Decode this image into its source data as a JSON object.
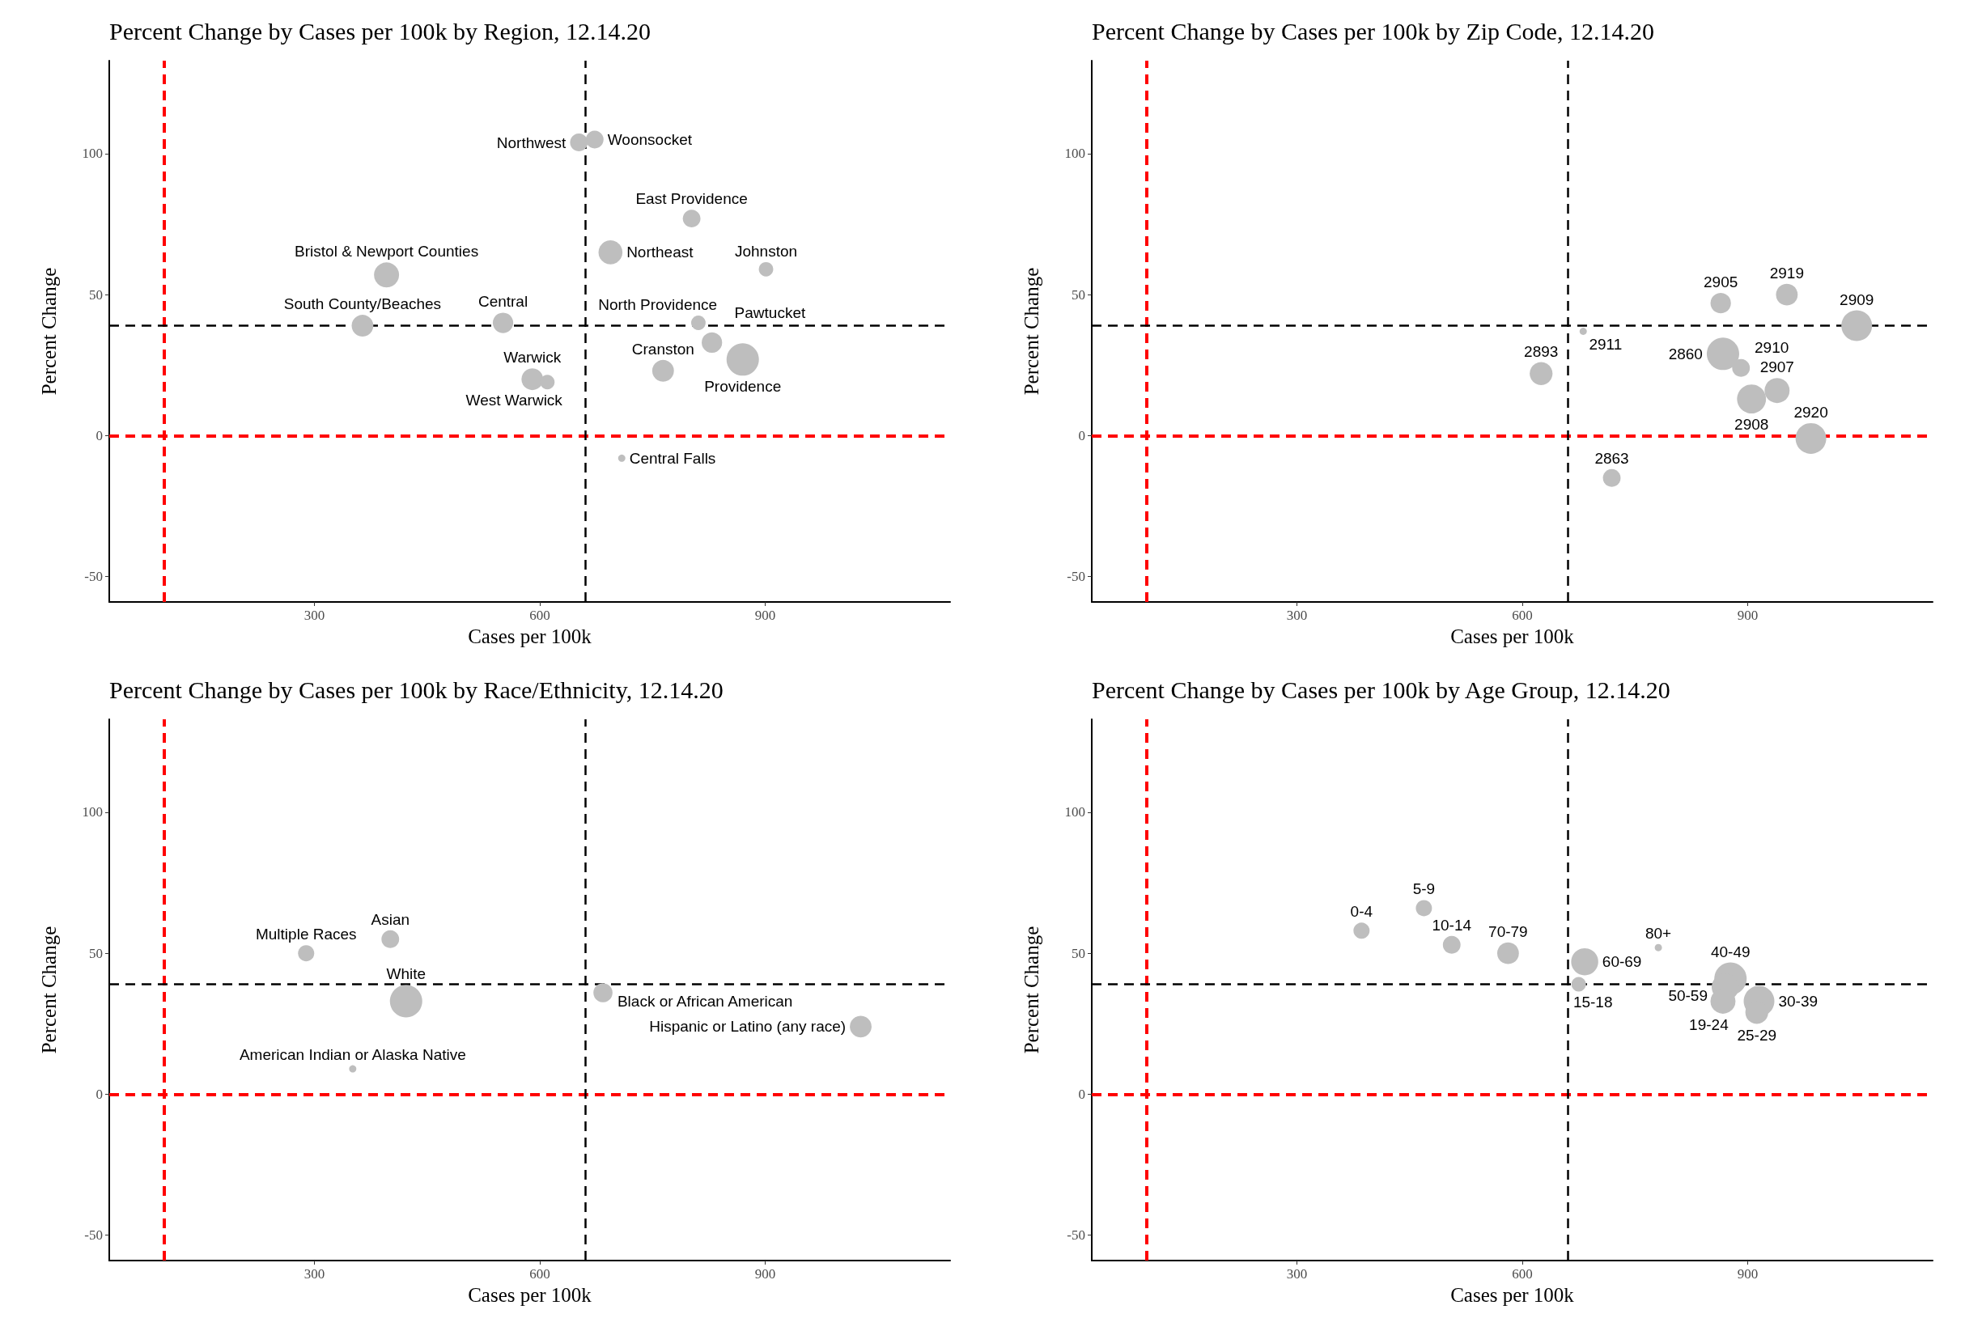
{
  "chart_data": [
    {
      "type": "bubble",
      "title": "Percent Change by Cases per 100k by Region, 12.14.20",
      "xlabel": "Cases per 100k",
      "ylabel": "Percent Change",
      "xlim": [
        27,
        1146
      ],
      "ylim": [
        -59,
        133
      ],
      "xticks": [
        300,
        600,
        900
      ],
      "yticks": [
        -50,
        0,
        50,
        100
      ],
      "grid": false,
      "ref_lines": [
        {
          "axis": "x",
          "value": 100,
          "color": "#ff0000",
          "line_style": "dashed"
        },
        {
          "axis": "y",
          "value": 0,
          "color": "#ff0000",
          "line_style": "dashed"
        },
        {
          "axis": "x",
          "value": 661,
          "color": "#000000",
          "line_style": "dashed"
        },
        {
          "axis": "y",
          "value": 39,
          "color": "#000000",
          "line_style": "dashed"
        }
      ],
      "series": [
        {
          "name": "Woonsocket",
          "color": "#bebebe",
          "x": [
            673
          ],
          "values": [
            105
          ],
          "sizes": [
            0.3
          ]
        },
        {
          "name": "Northwest",
          "color": "#bebebe",
          "x": [
            652
          ],
          "values": [
            104
          ],
          "sizes": [
            0.3
          ]
        },
        {
          "name": "East Providence",
          "color": "#bebebe",
          "x": [
            802
          ],
          "values": [
            77
          ],
          "sizes": [
            0.3
          ]
        },
        {
          "name": "Northeast",
          "color": "#bebebe",
          "x": [
            694
          ],
          "values": [
            65
          ],
          "sizes": [
            0.55
          ]
        },
        {
          "name": "Johnston",
          "color": "#bebebe",
          "x": [
            901
          ],
          "values": [
            59
          ],
          "sizes": [
            0.2
          ]
        },
        {
          "name": "Bristol & Newport Counties",
          "color": "#bebebe",
          "x": [
            396
          ],
          "values": [
            57
          ],
          "sizes": [
            0.6
          ]
        },
        {
          "name": "South County/Beaches",
          "color": "#bebebe",
          "x": [
            364
          ],
          "values": [
            39
          ],
          "sizes": [
            0.45
          ]
        },
        {
          "name": "Central",
          "color": "#bebebe",
          "x": [
            551
          ],
          "values": [
            40
          ],
          "sizes": [
            0.4
          ]
        },
        {
          "name": "North Providence",
          "color": "#bebebe",
          "x": [
            811
          ],
          "values": [
            40
          ],
          "sizes": [
            0.2
          ]
        },
        {
          "name": "Pawtucket",
          "color": "#bebebe",
          "x": [
            829
          ],
          "values": [
            33
          ],
          "sizes": [
            0.4
          ]
        },
        {
          "name": "Providence",
          "color": "#bebebe",
          "x": [
            870
          ],
          "values": [
            27
          ],
          "sizes": [
            1
          ]
        },
        {
          "name": "Cranston",
          "color": "#bebebe",
          "x": [
            764
          ],
          "values": [
            23
          ],
          "sizes": [
            0.45
          ]
        },
        {
          "name": "Warwick",
          "color": "#bebebe",
          "x": [
            590
          ],
          "values": [
            20
          ],
          "sizes": [
            0.45
          ]
        },
        {
          "name": "West Warwick",
          "color": "#bebebe",
          "x": [
            610
          ],
          "values": [
            19
          ],
          "sizes": [
            0.2
          ]
        },
        {
          "name": "Central Falls",
          "color": "#bebebe",
          "x": [
            709
          ],
          "values": [
            -8
          ],
          "sizes": [
            0.05
          ]
        }
      ]
    },
    {
      "type": "bubble",
      "title": "Percent Change by Cases per 100k by Zip Code, 12.14.20",
      "xlabel": "Cases per 100k",
      "ylabel": "Percent Change",
      "xlim": [
        27,
        1146
      ],
      "ylim": [
        -59,
        133
      ],
      "xticks": [
        300,
        600,
        900
      ],
      "yticks": [
        -50,
        0,
        50,
        100
      ],
      "grid": false,
      "ref_lines": [
        {
          "axis": "x",
          "value": 100,
          "color": "#ff0000",
          "line_style": "dashed"
        },
        {
          "axis": "y",
          "value": 0,
          "color": "#ff0000",
          "line_style": "dashed"
        },
        {
          "axis": "x",
          "value": 661,
          "color": "#000000",
          "line_style": "dashed"
        },
        {
          "axis": "y",
          "value": 39,
          "color": "#000000",
          "line_style": "dashed"
        }
      ],
      "series": [
        {
          "name": "2919",
          "color": "#bebebe",
          "x": [
            952
          ],
          "values": [
            50
          ],
          "sizes": [
            0.45
          ]
        },
        {
          "name": "2905",
          "color": "#bebebe",
          "x": [
            864
          ],
          "values": [
            47
          ],
          "sizes": [
            0.4
          ]
        },
        {
          "name": "2909",
          "color": "#bebebe",
          "x": [
            1045
          ],
          "values": [
            39
          ],
          "sizes": [
            0.9
          ]
        },
        {
          "name": "2911",
          "color": "#bebebe",
          "x": [
            681
          ],
          "values": [
            37
          ],
          "sizes": [
            0.05
          ]
        },
        {
          "name": "2860",
          "color": "#bebebe",
          "x": [
            867
          ],
          "values": [
            29
          ],
          "sizes": [
            1
          ]
        },
        {
          "name": "2910",
          "color": "#bebebe",
          "x": [
            891
          ],
          "values": [
            24
          ],
          "sizes": [
            0.3
          ]
        },
        {
          "name": "2893",
          "color": "#bebebe",
          "x": [
            625
          ],
          "values": [
            22
          ],
          "sizes": [
            0.5
          ]
        },
        {
          "name": "2907",
          "color": "#bebebe",
          "x": [
            939
          ],
          "values": [
            16
          ],
          "sizes": [
            0.6
          ]
        },
        {
          "name": "2908",
          "color": "#bebebe",
          "x": [
            905
          ],
          "values": [
            13
          ],
          "sizes": [
            0.8
          ]
        },
        {
          "name": "2920",
          "color": "#bebebe",
          "x": [
            984
          ],
          "values": [
            -1
          ],
          "sizes": [
            0.9
          ]
        },
        {
          "name": "2863",
          "color": "#bebebe",
          "x": [
            719
          ],
          "values": [
            -15
          ],
          "sizes": [
            0.3
          ]
        }
      ]
    },
    {
      "type": "bubble",
      "title": "Percent Change by Cases per 100k by Race/Ethnicity, 12.14.20",
      "xlabel": "Cases per 100k",
      "ylabel": "Percent Change",
      "xlim": [
        27,
        1146
      ],
      "ylim": [
        -59,
        133
      ],
      "xticks": [
        300,
        600,
        900
      ],
      "yticks": [
        -50,
        0,
        50,
        100
      ],
      "grid": false,
      "ref_lines": [
        {
          "axis": "x",
          "value": 100,
          "color": "#ff0000",
          "line_style": "dashed"
        },
        {
          "axis": "y",
          "value": 0,
          "color": "#ff0000",
          "line_style": "dashed"
        },
        {
          "axis": "x",
          "value": 661,
          "color": "#000000",
          "line_style": "dashed"
        },
        {
          "axis": "y",
          "value": 39,
          "color": "#000000",
          "line_style": "dashed"
        }
      ],
      "series": [
        {
          "name": "Asian",
          "color": "#bebebe",
          "x": [
            401
          ],
          "values": [
            55
          ],
          "sizes": [
            0.3
          ]
        },
        {
          "name": "Multiple Races",
          "color": "#bebebe",
          "x": [
            289
          ],
          "values": [
            50
          ],
          "sizes": [
            0.25
          ]
        },
        {
          "name": "Black or African American",
          "color": "#bebebe",
          "x": [
            684
          ],
          "values": [
            36
          ],
          "sizes": [
            0.35
          ]
        },
        {
          "name": "White",
          "color": "#bebebe",
          "x": [
            422
          ],
          "values": [
            33
          ],
          "sizes": [
            1
          ]
        },
        {
          "name": "Hispanic or Latino (any race)",
          "color": "#bebebe",
          "x": [
            1027
          ],
          "values": [
            24
          ],
          "sizes": [
            0.45
          ]
        },
        {
          "name": "American Indian or Alaska Native",
          "color": "#bebebe",
          "x": [
            351
          ],
          "values": [
            9
          ],
          "sizes": [
            0.05
          ]
        }
      ]
    },
    {
      "type": "bubble",
      "title": "Percent Change by Cases per 100k by Age Group, 12.14.20",
      "xlabel": "Cases per 100k",
      "ylabel": "Percent Change",
      "xlim": [
        27,
        1146
      ],
      "ylim": [
        -59,
        133
      ],
      "xticks": [
        300,
        600,
        900
      ],
      "yticks": [
        -50,
        0,
        50,
        100
      ],
      "grid": false,
      "ref_lines": [
        {
          "axis": "x",
          "value": 100,
          "color": "#ff0000",
          "line_style": "dashed"
        },
        {
          "axis": "y",
          "value": 0,
          "color": "#ff0000",
          "line_style": "dashed"
        },
        {
          "axis": "x",
          "value": 661,
          "color": "#000000",
          "line_style": "dashed"
        },
        {
          "axis": "y",
          "value": 39,
          "color": "#000000",
          "line_style": "dashed"
        }
      ],
      "series": [
        {
          "name": "5-9",
          "color": "#bebebe",
          "x": [
            469
          ],
          "values": [
            66
          ],
          "sizes": [
            0.25
          ]
        },
        {
          "name": "0-4",
          "color": "#bebebe",
          "x": [
            386
          ],
          "values": [
            58
          ],
          "sizes": [
            0.25
          ]
        },
        {
          "name": "10-14",
          "color": "#bebebe",
          "x": [
            506
          ],
          "values": [
            53
          ],
          "sizes": [
            0.3
          ]
        },
        {
          "name": "80+",
          "color": "#bebebe",
          "x": [
            781
          ],
          "values": [
            52
          ],
          "sizes": [
            0.05
          ]
        },
        {
          "name": "70-79",
          "color": "#bebebe",
          "x": [
            581
          ],
          "values": [
            50
          ],
          "sizes": [
            0.45
          ]
        },
        {
          "name": "60-69",
          "color": "#bebebe",
          "x": [
            683
          ],
          "values": [
            47
          ],
          "sizes": [
            0.7
          ]
        },
        {
          "name": "40-49",
          "color": "#bebebe",
          "x": [
            877
          ],
          "values": [
            41
          ],
          "sizes": [
            1
          ]
        },
        {
          "name": "15-18",
          "color": "#bebebe",
          "x": [
            675
          ],
          "values": [
            39
          ],
          "sizes": [
            0.2
          ]
        },
        {
          "name": "50-59",
          "color": "#bebebe",
          "x": [
            870
          ],
          "values": [
            38
          ],
          "sizes": [
            0.7
          ]
        },
        {
          "name": "30-39",
          "color": "#bebebe",
          "x": [
            915
          ],
          "values": [
            33
          ],
          "sizes": [
            0.9
          ]
        },
        {
          "name": "19-24",
          "color": "#bebebe",
          "x": [
            867
          ],
          "values": [
            33
          ],
          "sizes": [
            0.6
          ]
        },
        {
          "name": "25-29",
          "color": "#bebebe",
          "x": [
            912
          ],
          "values": [
            29
          ],
          "sizes": [
            0.5
          ]
        }
      ]
    }
  ]
}
